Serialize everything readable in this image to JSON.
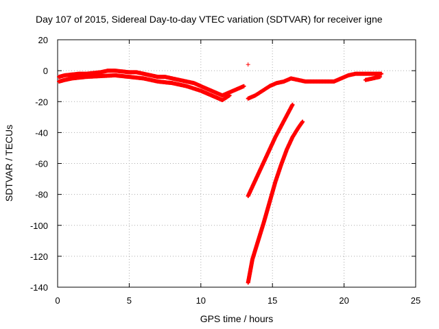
{
  "chart_data": {
    "type": "scatter",
    "title": "Day 107 of 2015, Sidereal Day-to-day VTEC variation (SDTVAR) for receiver igne",
    "xlabel": "GPS time / hours",
    "ylabel": "SDTVAR / TECUs",
    "xlim": [
      0,
      25
    ],
    "ylim": [
      -140,
      20
    ],
    "x_ticks": [
      0,
      5,
      10,
      15,
      20,
      25
    ],
    "y_ticks": [
      20,
      0,
      -20,
      -40,
      -60,
      -80,
      -100,
      -120,
      -140
    ],
    "grid": true,
    "marker": "+",
    "series_color": "#ff0000",
    "series": [
      {
        "name": "main-band",
        "x": [
          0.1,
          0.5,
          1.0,
          1.5,
          2.0,
          2.5,
          3.0,
          3.5,
          4.0,
          4.5,
          5.0,
          5.5,
          6.0,
          6.5,
          7.0,
          7.5,
          8.0,
          8.5,
          9.0,
          9.5,
          10.0,
          10.5,
          11.0,
          11.5,
          12.0,
          12.5,
          13.0
        ],
        "y": [
          -4,
          -3,
          -2.5,
          -2,
          -2,
          -1.5,
          -1,
          0,
          0,
          -0.5,
          -1,
          -1,
          -2,
          -3,
          -4,
          -4,
          -5,
          -6,
          -7,
          -8,
          -10,
          -12,
          -14,
          -16,
          -14,
          -12,
          -10
        ]
      },
      {
        "name": "main-band-lower",
        "x": [
          0.1,
          0.5,
          1.0,
          2.0,
          3.0,
          4.0,
          5.0,
          6.0,
          7.0,
          8.0,
          9.0,
          10.0,
          10.5,
          11.0,
          11.5,
          12.0
        ],
        "y": [
          -7,
          -6,
          -5,
          -4,
          -3.5,
          -3,
          -4,
          -5,
          -7,
          -8,
          -10,
          -13,
          -15,
          -17,
          -19,
          -16
        ]
      },
      {
        "name": "second-band",
        "x": [
          13.3,
          13.8,
          14.3,
          14.8,
          15.3,
          15.8,
          16.3,
          16.8,
          17.3,
          17.8,
          18.3,
          18.8,
          19.3,
          19.8,
          20.3,
          20.8,
          21.3,
          21.8,
          22.3,
          22.6
        ],
        "y": [
          -18,
          -16,
          -13,
          -10,
          -8,
          -7,
          -5,
          -6,
          -7,
          -7,
          -7,
          -7,
          -7,
          -5,
          -3,
          -2,
          -2,
          -2,
          -2,
          -2
        ]
      },
      {
        "name": "second-band-tail",
        "x": [
          21.5,
          22.0,
          22.5
        ],
        "y": [
          -6,
          -5,
          -4
        ]
      },
      {
        "name": "descending-arc-1",
        "x": [
          13.3,
          13.6,
          14.0,
          14.4,
          14.8,
          15.2,
          15.6,
          16.0,
          16.4
        ],
        "y": [
          -81,
          -75,
          -67,
          -59,
          -51,
          -43,
          -36,
          -29,
          -22
        ]
      },
      {
        "name": "descending-arc-2",
        "x": [
          13.3,
          13.6,
          14.0,
          14.4,
          14.8,
          15.2,
          15.6,
          16.0,
          16.4,
          16.8,
          17.1
        ],
        "y": [
          -137,
          -122,
          -110,
          -98,
          -85,
          -72,
          -61,
          -51,
          -43,
          -37,
          -33
        ]
      },
      {
        "name": "outlier",
        "x": [
          13.3
        ],
        "y": [
          4
        ]
      }
    ]
  }
}
